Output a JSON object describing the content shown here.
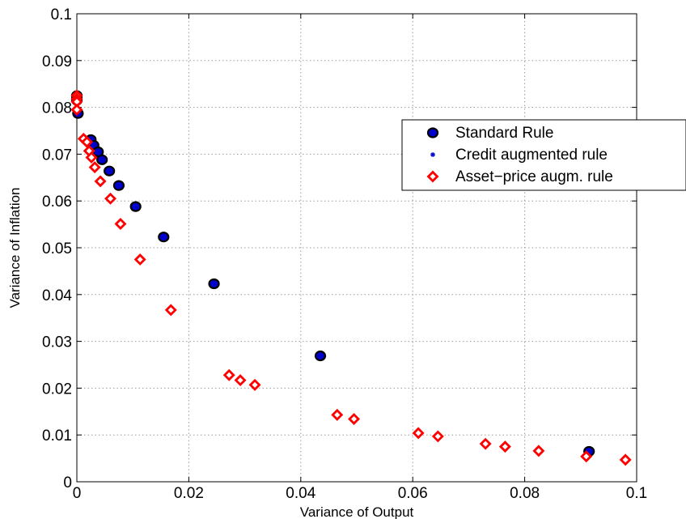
{
  "chart_data": {
    "type": "scatter",
    "title": "",
    "xlabel": "Variance of Output",
    "ylabel": "Variance of Inflation",
    "xlim": [
      0,
      0.1
    ],
    "ylim": [
      0,
      0.1
    ],
    "grid": true,
    "legend_position": "right",
    "xticks": [
      "0",
      "0.02",
      "0.04",
      "0.06",
      "0.08",
      "0.1"
    ],
    "yticks": [
      "0",
      "0.01",
      "0.02",
      "0.03",
      "0.04",
      "0.05",
      "0.06",
      "0.07",
      "0.08",
      "0.09",
      "0.1"
    ],
    "series": [
      {
        "name": "Standard Rule",
        "marker": "circle",
        "color": "#000000",
        "x": [
          0.0,
          0.0,
          0.0,
          0.0002,
          0.0025,
          0.003,
          0.0038,
          0.0045,
          0.0058,
          0.0075,
          0.0105,
          0.0155,
          0.0245,
          0.0435,
          0.0915
        ],
        "y": [
          0.0825,
          0.082,
          0.0815,
          0.0787,
          0.0731,
          0.0719,
          0.0705,
          0.0688,
          0.0664,
          0.0633,
          0.0588,
          0.0523,
          0.0423,
          0.0269,
          0.0065
        ]
      },
      {
        "name": "Credit augmented rule",
        "marker": "star",
        "color": "#0000cc",
        "x": [
          0.0,
          0.0,
          0.0,
          0.0002,
          0.0025,
          0.003,
          0.0038,
          0.0045,
          0.0058,
          0.0075,
          0.0105,
          0.0155,
          0.0245,
          0.0435,
          0.0915
        ],
        "y": [
          0.0825,
          0.082,
          0.0815,
          0.0787,
          0.0731,
          0.0719,
          0.0705,
          0.0688,
          0.0664,
          0.0633,
          0.0588,
          0.0523,
          0.0423,
          0.0269,
          0.0065
        ]
      },
      {
        "name": "Asset−price augm. rule",
        "marker": "diamond",
        "color": "#ff0000",
        "x": [
          0.0,
          0.0,
          0.0,
          0.0,
          0.0012,
          0.0018,
          0.0022,
          0.0026,
          0.0032,
          0.0042,
          0.006,
          0.0078,
          0.0113,
          0.0168,
          0.0272,
          0.0292,
          0.0318,
          0.0465,
          0.0495,
          0.061,
          0.0645,
          0.073,
          0.0765,
          0.0825,
          0.091,
          0.098
        ],
        "y": [
          0.0825,
          0.0818,
          0.0812,
          0.0795,
          0.0733,
          0.0726,
          0.0707,
          0.0693,
          0.0672,
          0.0642,
          0.0605,
          0.0551,
          0.0475,
          0.0367,
          0.0228,
          0.0217,
          0.0207,
          0.0143,
          0.0134,
          0.0104,
          0.0097,
          0.0081,
          0.0075,
          0.0066,
          0.0054,
          0.0047
        ]
      }
    ]
  }
}
